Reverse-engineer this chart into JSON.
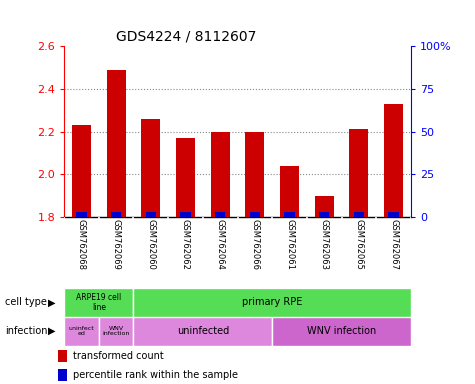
{
  "title": "GDS4224 / 8112607",
  "samples": [
    "GSM762068",
    "GSM762069",
    "GSM762060",
    "GSM762062",
    "GSM762064",
    "GSM762066",
    "GSM762061",
    "GSM762063",
    "GSM762065",
    "GSM762067"
  ],
  "transformed_counts": [
    2.23,
    2.49,
    2.26,
    2.17,
    2.2,
    2.2,
    2.04,
    1.9,
    2.21,
    2.33
  ],
  "percentile_ranks": [
    3,
    3,
    3,
    3,
    3,
    3,
    3,
    3,
    3,
    3
  ],
  "ylim": [
    1.8,
    2.6
  ],
  "y2lim": [
    0,
    100
  ],
  "yticks": [
    1.8,
    2.0,
    2.2,
    2.4,
    2.6
  ],
  "y2ticks": [
    0,
    25,
    50,
    75,
    100
  ],
  "y2ticklabels": [
    "0",
    "25",
    "50",
    "75",
    "100%"
  ],
  "bar_color": "#cc0000",
  "percentile_color": "#0000cc",
  "bar_width": 0.55,
  "pct_bar_width": 0.3,
  "grid_dotted_color": "#888888",
  "tick_area_color": "#c8c8c8",
  "tick_area_line_color": "#ffffff",
  "cell_type_green": "#55dd55",
  "infection_pink": "#dd88dd",
  "infection_purple": "#cc66cc",
  "legend_square_size": 8,
  "title_fontsize": 10,
  "axis_tick_fontsize": 8,
  "sample_fontsize": 6,
  "annotation_fontsize": 7,
  "label_fontsize": 7
}
